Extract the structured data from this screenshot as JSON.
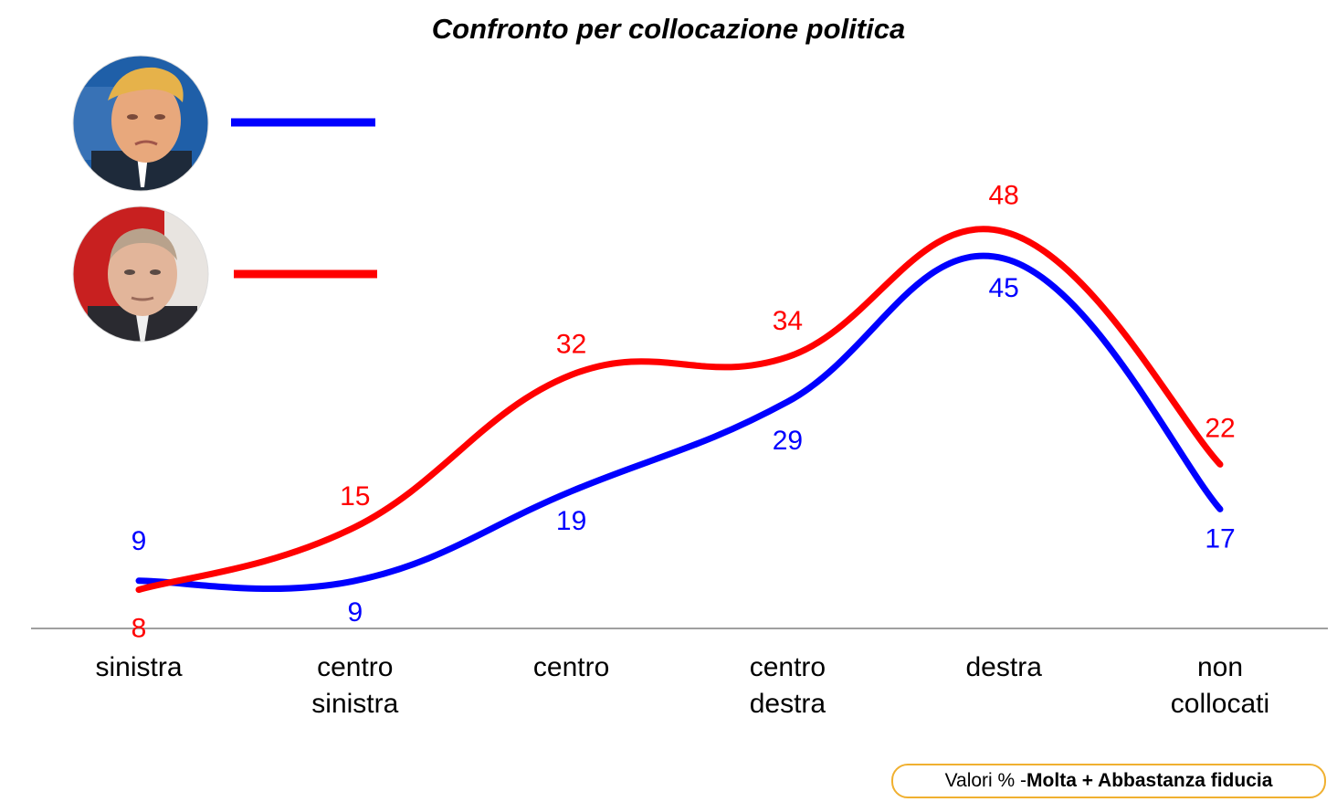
{
  "chart_data": {
    "type": "line",
    "title": "Confronto per collocazione politica",
    "xlabel": "",
    "ylabel": "",
    "ylim": [
      0,
      55
    ],
    "grid": false,
    "legend_placement": "top-left",
    "categories": [
      [
        "sinistra"
      ],
      [
        "centro",
        "sinistra"
      ],
      [
        "centro"
      ],
      [
        "centro",
        "destra"
      ],
      [
        "destra"
      ],
      [
        "non",
        "collocati"
      ]
    ],
    "series": [
      {
        "key": "trump",
        "color": "#0000ff",
        "legend_icon": "trump-portrait",
        "values": [
          9,
          9,
          19,
          29,
          45,
          17
        ]
      },
      {
        "key": "putin",
        "color": "#ff0000",
        "legend_icon": "putin-portrait",
        "values": [
          8,
          15,
          32,
          34,
          48,
          22
        ]
      }
    ]
  },
  "note": {
    "prefix": "Valori % - ",
    "bold": "Molta + Abbastanza fiducia",
    "border_color": "#f0b030"
  }
}
